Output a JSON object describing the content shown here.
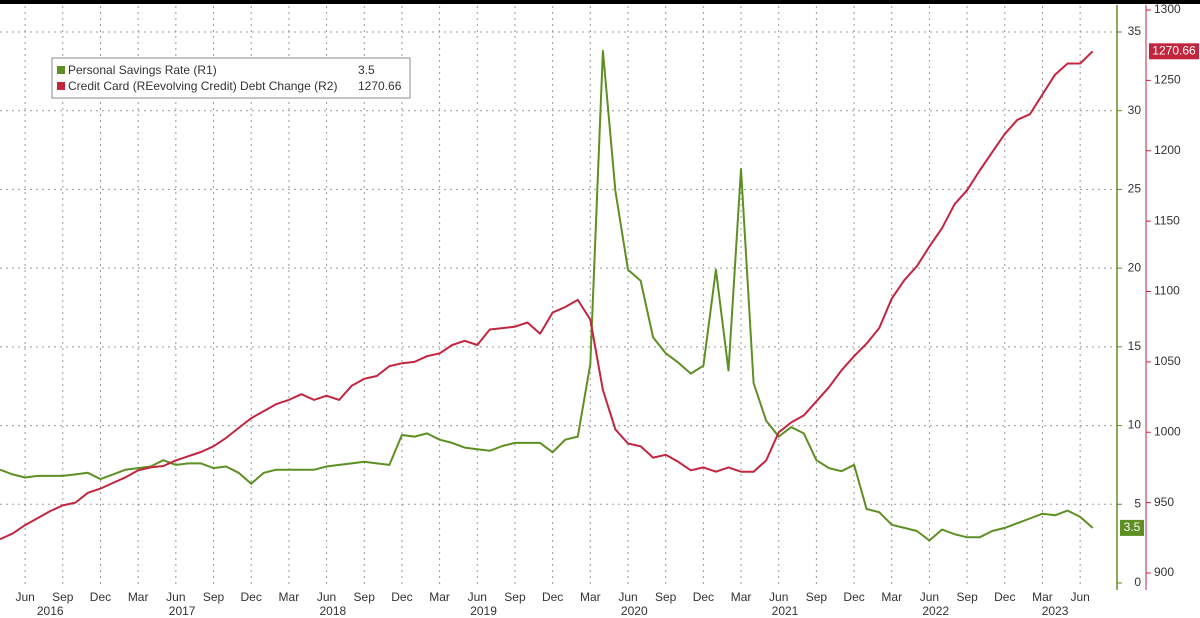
{
  "chart_data": {
    "type": "line",
    "x": [
      "2016-04",
      "2016-05",
      "2016-06",
      "2016-07",
      "2016-08",
      "2016-09",
      "2016-10",
      "2016-11",
      "2016-12",
      "2017-01",
      "2017-02",
      "2017-03",
      "2017-04",
      "2017-05",
      "2017-06",
      "2017-07",
      "2017-08",
      "2017-09",
      "2017-10",
      "2017-11",
      "2017-12",
      "2018-01",
      "2018-02",
      "2018-03",
      "2018-04",
      "2018-05",
      "2018-06",
      "2018-07",
      "2018-08",
      "2018-09",
      "2018-10",
      "2018-11",
      "2018-12",
      "2019-01",
      "2019-02",
      "2019-03",
      "2019-04",
      "2019-05",
      "2019-06",
      "2019-07",
      "2019-08",
      "2019-09",
      "2019-10",
      "2019-11",
      "2019-12",
      "2020-01",
      "2020-02",
      "2020-03",
      "2020-04",
      "2020-05",
      "2020-06",
      "2020-07",
      "2020-08",
      "2020-09",
      "2020-10",
      "2020-11",
      "2020-12",
      "2021-01",
      "2021-02",
      "2021-03",
      "2021-04",
      "2021-05",
      "2021-06",
      "2021-07",
      "2021-08",
      "2021-09",
      "2021-10",
      "2021-11",
      "2021-12",
      "2022-01",
      "2022-02",
      "2022-03",
      "2022-04",
      "2022-05",
      "2022-06",
      "2022-07",
      "2022-08",
      "2022-09",
      "2022-10",
      "2022-11",
      "2022-12",
      "2023-01",
      "2023-02",
      "2023-03",
      "2023-04",
      "2023-05",
      "2023-06",
      "2023-07"
    ],
    "series": [
      {
        "name": "Personal Savings Rate (R1)",
        "color": "#5e8f22",
        "axis": "y",
        "values": [
          7.2,
          6.9,
          6.7,
          6.8,
          6.8,
          6.8,
          6.9,
          7.0,
          6.6,
          6.9,
          7.2,
          7.3,
          7.4,
          7.8,
          7.5,
          7.6,
          7.6,
          7.3,
          7.4,
          7.0,
          6.3,
          7.0,
          7.2,
          7.2,
          7.2,
          7.2,
          7.4,
          7.5,
          7.6,
          7.7,
          7.6,
          7.5,
          9.4,
          9.3,
          9.5,
          9.1,
          8.9,
          8.6,
          8.5,
          8.4,
          8.7,
          8.9,
          8.9,
          8.9,
          8.3,
          9.1,
          9.3,
          13.9,
          33.8,
          24.9,
          19.9,
          19.2,
          15.6,
          14.6,
          14.0,
          13.3,
          13.8,
          19.9,
          13.5,
          26.3,
          12.7,
          10.3,
          9.3,
          9.9,
          9.5,
          7.8,
          7.3,
          7.1,
          7.5,
          4.7,
          4.5,
          3.7,
          3.5,
          3.3,
          2.7,
          3.4,
          3.1,
          2.9,
          2.9,
          3.3,
          3.5,
          3.8,
          4.1,
          4.4,
          4.3,
          4.6,
          4.2,
          3.5
        ]
      },
      {
        "name": "Credit Card (REevolving Credit) Debt Change (R2)",
        "color": "#c3253f",
        "axis": "y2",
        "values": [
          924,
          928,
          934,
          939,
          944,
          948,
          950,
          957,
          960,
          964,
          968,
          973,
          975,
          976,
          980,
          983,
          986,
          990,
          996,
          1003,
          1010,
          1015,
          1020,
          1023,
          1027,
          1023,
          1026,
          1023,
          1033,
          1038,
          1040,
          1047,
          1049,
          1050,
          1054,
          1056,
          1062,
          1065,
          1062,
          1073,
          1074,
          1075,
          1078,
          1070,
          1085,
          1089,
          1094,
          1080,
          1030,
          1002,
          992,
          990,
          982,
          984,
          979,
          973,
          975,
          972,
          975,
          972,
          972,
          980,
          1000,
          1007,
          1012,
          1022,
          1032,
          1044,
          1054,
          1063,
          1074,
          1095,
          1108,
          1118,
          1132,
          1145,
          1162,
          1172,
          1186,
          1199,
          1212,
          1222,
          1226,
          1240,
          1254,
          1262,
          1262,
          1270.66
        ]
      }
    ],
    "xticks": [
      {
        "value": "2016-06",
        "label": "Jun"
      },
      {
        "value": "2016-09",
        "label": "Sep"
      },
      {
        "value": "2016-12",
        "label": "Dec"
      },
      {
        "value": "2017-03",
        "label": "Mar"
      },
      {
        "value": "2017-06",
        "label": "Jun"
      },
      {
        "value": "2017-09",
        "label": "Sep"
      },
      {
        "value": "2017-12",
        "label": "Dec"
      },
      {
        "value": "2018-03",
        "label": "Mar"
      },
      {
        "value": "2018-06",
        "label": "Jun"
      },
      {
        "value": "2018-09",
        "label": "Sep"
      },
      {
        "value": "2018-12",
        "label": "Dec"
      },
      {
        "value": "2019-03",
        "label": "Mar"
      },
      {
        "value": "2019-06",
        "label": "Jun"
      },
      {
        "value": "2019-09",
        "label": "Sep"
      },
      {
        "value": "2019-12",
        "label": "Dec"
      },
      {
        "value": "2020-03",
        "label": "Mar"
      },
      {
        "value": "2020-06",
        "label": "Jun"
      },
      {
        "value": "2020-09",
        "label": "Sep"
      },
      {
        "value": "2020-12",
        "label": "Dec"
      },
      {
        "value": "2021-03",
        "label": "Mar"
      },
      {
        "value": "2021-06",
        "label": "Jun"
      },
      {
        "value": "2021-09",
        "label": "Sep"
      },
      {
        "value": "2021-12",
        "label": "Dec"
      },
      {
        "value": "2022-03",
        "label": "Mar"
      },
      {
        "value": "2022-06",
        "label": "Jun"
      },
      {
        "value": "2022-09",
        "label": "Sep"
      },
      {
        "value": "2022-12",
        "label": "Dec"
      },
      {
        "value": "2023-03",
        "label": "Mar"
      },
      {
        "value": "2023-06",
        "label": "Jun"
      }
    ],
    "year_labels": [
      2016,
      2017,
      2018,
      2019,
      2020,
      2021,
      2022,
      2023
    ],
    "ylim": [
      0,
      35
    ],
    "yticks": [
      0,
      5,
      10,
      15,
      20,
      25,
      30,
      35
    ],
    "y2lim": [
      900,
      1300
    ],
    "y2ticks": [
      900,
      950,
      1000,
      1050,
      1100,
      1150,
      1200,
      1250,
      1300
    ],
    "grid": true,
    "legend": "upper left"
  }
}
